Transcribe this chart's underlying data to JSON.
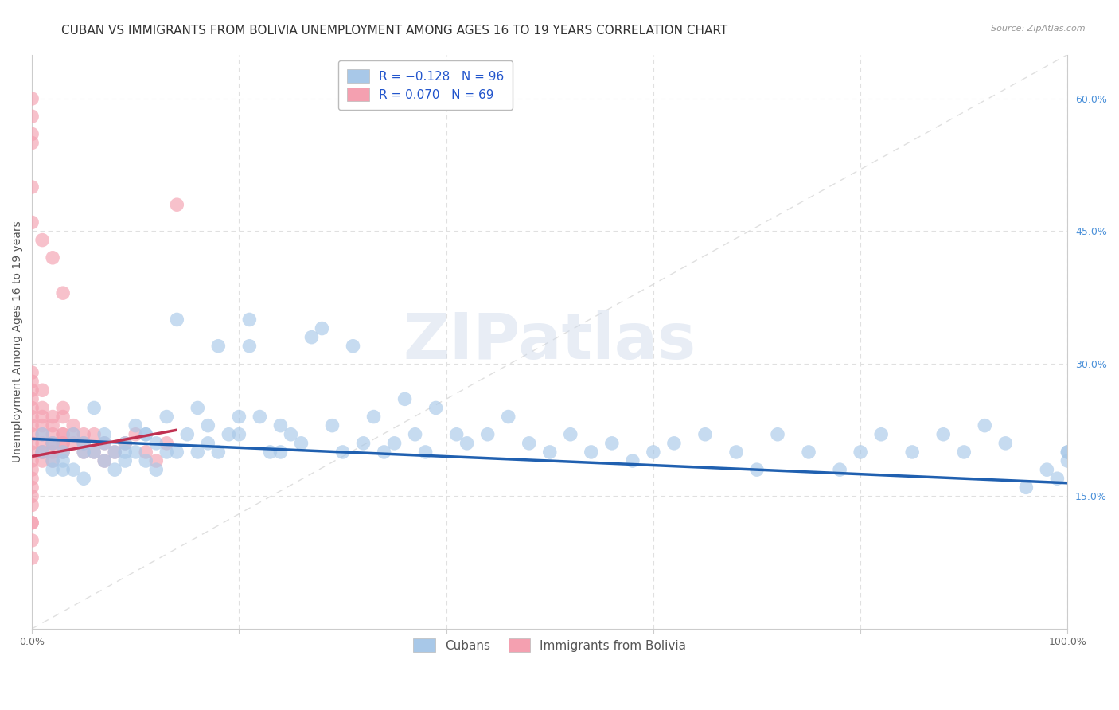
{
  "title": "CUBAN VS IMMIGRANTS FROM BOLIVIA UNEMPLOYMENT AMONG AGES 16 TO 19 YEARS CORRELATION CHART",
  "source": "Source: ZipAtlas.com",
  "ylabel": "Unemployment Among Ages 16 to 19 years",
  "ylabel_right_ticks": [
    "15.0%",
    "30.0%",
    "45.0%",
    "60.0%"
  ],
  "ylabel_right_vals": [
    15,
    30,
    45,
    60
  ],
  "cubans_x": [
    1,
    1,
    2,
    2,
    3,
    3,
    4,
    4,
    5,
    5,
    6,
    6,
    7,
    7,
    8,
    8,
    9,
    9,
    10,
    10,
    11,
    11,
    12,
    12,
    13,
    13,
    14,
    15,
    16,
    16,
    17,
    18,
    18,
    19,
    20,
    21,
    21,
    22,
    23,
    24,
    25,
    26,
    27,
    28,
    29,
    30,
    31,
    32,
    33,
    34,
    35,
    36,
    37,
    38,
    39,
    41,
    42,
    44,
    46,
    48,
    50,
    52,
    54,
    56,
    58,
    60,
    62,
    65,
    68,
    70,
    72,
    75,
    78,
    80,
    82,
    85,
    88,
    90,
    92,
    94,
    96,
    98,
    99,
    100,
    100,
    100,
    2,
    3,
    5,
    7,
    9,
    11,
    14,
    17,
    20,
    24
  ],
  "cubans_y": [
    20,
    22,
    18,
    21,
    20,
    19,
    22,
    18,
    21,
    17,
    20,
    25,
    19,
    22,
    20,
    18,
    21,
    19,
    20,
    23,
    22,
    19,
    21,
    18,
    24,
    20,
    35,
    22,
    25,
    20,
    23,
    32,
    20,
    22,
    24,
    32,
    35,
    24,
    20,
    23,
    22,
    21,
    33,
    34,
    23,
    20,
    32,
    21,
    24,
    20,
    21,
    26,
    22,
    20,
    25,
    22,
    21,
    22,
    24,
    21,
    20,
    22,
    20,
    21,
    19,
    20,
    21,
    22,
    20,
    18,
    22,
    20,
    18,
    20,
    22,
    20,
    22,
    20,
    23,
    21,
    16,
    18,
    17,
    19,
    20,
    20,
    19,
    18,
    20,
    21,
    20,
    22,
    20,
    21,
    22,
    20
  ],
  "bolivia_x": [
    0,
    0,
    0,
    0,
    0,
    0,
    0,
    0,
    0,
    0,
    0,
    0,
    0,
    0,
    0,
    0,
    0,
    0,
    0,
    0,
    1,
    1,
    1,
    1,
    1,
    1,
    1,
    1,
    1,
    2,
    2,
    2,
    2,
    2,
    2,
    2,
    3,
    3,
    3,
    3,
    3,
    3,
    3,
    4,
    4,
    4,
    5,
    5,
    5,
    6,
    6,
    7,
    7,
    8,
    9,
    10,
    11,
    12,
    13,
    14,
    0,
    0,
    0,
    0,
    0,
    0,
    1,
    2,
    3
  ],
  "bolivia_y": [
    20,
    18,
    22,
    19,
    21,
    17,
    10,
    8,
    12,
    15,
    27,
    28,
    29,
    25,
    23,
    24,
    26,
    16,
    14,
    12,
    20,
    21,
    19,
    22,
    20,
    23,
    25,
    27,
    24,
    21,
    20,
    23,
    24,
    22,
    19,
    21,
    22,
    21,
    20,
    24,
    25,
    22,
    21,
    23,
    22,
    21,
    20,
    22,
    21,
    20,
    22,
    21,
    19,
    20,
    21,
    22,
    20,
    19,
    21,
    48,
    55,
    58,
    60,
    56,
    50,
    46,
    44,
    42,
    38
  ],
  "blue_line_x": [
    0,
    100
  ],
  "blue_line_y": [
    21.5,
    16.5
  ],
  "pink_line_x": [
    0,
    14
  ],
  "pink_line_y": [
    19.5,
    22.5
  ],
  "diag_line_x": [
    0,
    100
  ],
  "diag_line_y": [
    0,
    65
  ],
  "xmin": 0,
  "xmax": 100,
  "ymin": 0,
  "ymax": 65,
  "blue_color": "#a8c8e8",
  "pink_color": "#f4a0b0",
  "blue_line_color": "#2060b0",
  "pink_line_color": "#c03050",
  "diag_line_color": "#d8d8d8",
  "background_color": "#ffffff",
  "watermark_text": "ZIPatlas",
  "title_fontsize": 11,
  "axis_label_fontsize": 10,
  "tick_fontsize": 9,
  "right_tick_color": "#4a90d9",
  "left_tick_color": "#888888"
}
